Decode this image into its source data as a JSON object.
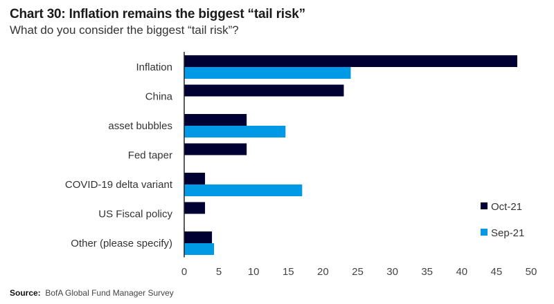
{
  "header": {
    "title": "Chart 30: Inflation remains the biggest “tail risk”",
    "subtitle": "What do you consider the biggest “tail risk”?"
  },
  "footer": {
    "source_label": "Source:",
    "source_text": "BofA Global Fund Manager Survey"
  },
  "chart_data": {
    "type": "bar",
    "orientation": "horizontal",
    "title": "Chart 30: Inflation remains the biggest “tail risk”",
    "subtitle": "What do you consider the biggest “tail risk”?",
    "xlabel": "",
    "ylabel": "",
    "xlim": [
      0,
      50
    ],
    "xticks": [
      0,
      5,
      10,
      15,
      20,
      25,
      30,
      35,
      40,
      45,
      50
    ],
    "grid": false,
    "legend_position": "bottom-right",
    "categories": [
      "Inflation",
      "China",
      "asset bubbles",
      "Fed taper",
      "COVID-19 delta variant",
      "US Fiscal policy",
      "Other (please specify)"
    ],
    "series": [
      {
        "name": "Oct-21",
        "color": "#000033",
        "values": [
          48,
          23,
          9,
          9,
          3,
          3,
          4
        ]
      },
      {
        "name": "Sep-21",
        "color": "#0099e6",
        "values": [
          24,
          null,
          14.6,
          null,
          17,
          null,
          4.3
        ]
      }
    ]
  }
}
